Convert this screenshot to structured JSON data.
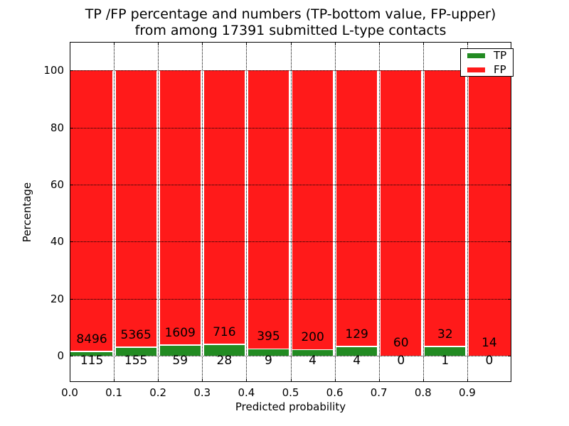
{
  "chart_data": {
    "type": "bar",
    "stacked": true,
    "normalized_per_bin_to_100_percent": true,
    "title_lines": [
      "TP /FP percentage and numbers (TP-bottom value, FP-upper)",
      "from among 17391 submitted L-type contacts"
    ],
    "xlabel": "Predicted probability",
    "ylabel": "Percentage",
    "xlim": [
      0.0,
      1.0
    ],
    "ylim": [
      -10,
      110
    ],
    "bin_width": 0.1,
    "x_tick_labels": [
      "0.0",
      "0.1",
      "0.2",
      "0.3",
      "0.4",
      "0.5",
      "0.6",
      "0.7",
      "0.8",
      "0.9"
    ],
    "y_tick_labels": [
      "0",
      "20",
      "40",
      "60",
      "80",
      "100"
    ],
    "y_tick_values": [
      0,
      20,
      40,
      60,
      80,
      100
    ],
    "grid_style": "dotted, black, drawn above bars",
    "legend": {
      "position": "upper right",
      "entries": [
        {
          "label": "TP",
          "color": "#228b22"
        },
        {
          "label": "FP",
          "color": "#ff1a1a"
        }
      ]
    },
    "categories": [
      "0.0-0.1",
      "0.1-0.2",
      "0.2-0.3",
      "0.3-0.4",
      "0.4-0.5",
      "0.5-0.6",
      "0.6-0.7",
      "0.7-0.8",
      "0.8-0.9",
      "0.9-1.0"
    ],
    "series": [
      {
        "name": "TP",
        "color": "#228b22",
        "counts": [
          115,
          155,
          59,
          28,
          9,
          4,
          4,
          0,
          1,
          0
        ]
      },
      {
        "name": "FP",
        "color": "#ff1a1a",
        "counts": [
          8496,
          5365,
          1609,
          716,
          395,
          200,
          129,
          60,
          32,
          14
        ]
      }
    ],
    "tp_percent_of_bin": [
      1.34,
      2.81,
      3.54,
      3.76,
      2.23,
      1.96,
      3.01,
      0.0,
      3.03,
      0.0
    ],
    "colors": {
      "tp": "#228b22",
      "fp": "#ff1a1a",
      "background": "#ffffff",
      "text": "#000000"
    }
  }
}
